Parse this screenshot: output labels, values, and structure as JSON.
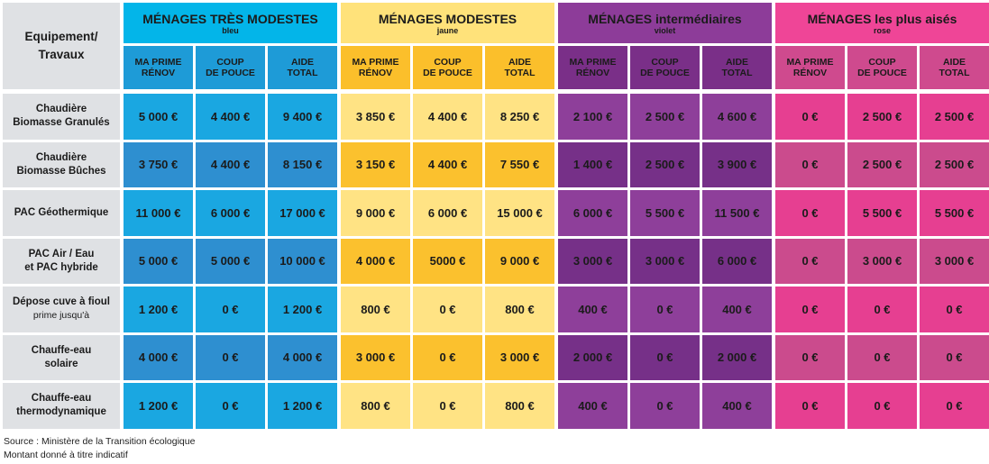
{
  "corner_label": "Equipement/\nTravaux",
  "groups": [
    {
      "title": "MÉNAGES TRÈS MODESTES",
      "subtitle": "bleu",
      "colors": {
        "header": "#03b5e9",
        "sub": "#1e9bd7",
        "row": "#1aa7e1",
        "row_alt": "#2e8fd0",
        "text": "#1b1b1b"
      }
    },
    {
      "title": "MÉNAGES MODESTES",
      "subtitle": "jaune",
      "colors": {
        "header": "#ffe27a",
        "sub": "#fbbf2b",
        "row": "#ffe384",
        "row_alt": "#fbc12e",
        "text": "#1b1b1b"
      }
    },
    {
      "title": "MÉNAGES intermédiaires",
      "subtitle": "violet",
      "colors": {
        "header": "#8d3c99",
        "sub": "#7a2f88",
        "row": "#8e3f9a",
        "row_alt": "#763088",
        "text": "#1b1b1b"
      }
    },
    {
      "title": "MÉNAGES les plus aisés",
      "subtitle": "rose",
      "colors": {
        "header": "#ef4597",
        "sub": "#cf4a8e",
        "row": "#e63f91",
        "row_alt": "#cb4b8d",
        "text": "#1b1b1b"
      }
    }
  ],
  "sub_headers": [
    "MA PRIME\nRÉNOV",
    "COUP\nDE POUCE",
    "AIDE\nTOTAL"
  ],
  "rows": [
    {
      "label": "Chaudière\nBiomasse Granulés",
      "values": [
        "5 000 €",
        "4 400 €",
        "9 400 €",
        "3 850 €",
        "4 400 €",
        "8 250 €",
        "2 100 €",
        "2 500 €",
        "4 600 €",
        "0 €",
        "2  500 €",
        "2 500 €"
      ]
    },
    {
      "label": "Chaudière\nBiomasse Bûches",
      "values": [
        "3 750 €",
        "4 400 €",
        "8 150 €",
        "3 150 €",
        "4 400 €",
        "7 550 €",
        "1 400 €",
        "2 500 €",
        "3 900 €",
        "0 €",
        "2  500 €",
        "2 500 €"
      ]
    },
    {
      "label": "PAC Géothermique",
      "values": [
        "11 000 €",
        "6 000 €",
        "17 000 €",
        "9 000 €",
        "6 000 €",
        "15 000 €",
        "6 000 €",
        "5 500 €",
        "11 500 €",
        "0 €",
        "5 500 €",
        "5 500 €"
      ]
    },
    {
      "label": "PAC Air / Eau\net PAC hybride",
      "values": [
        "5 000 €",
        "5 000 €",
        "10 000 €",
        "4 000 €",
        "5000 €",
        "9 000 €",
        "3 000 €",
        "3 000 €",
        "6 000 €",
        "0 €",
        "3 000 €",
        "3 000 €"
      ]
    },
    {
      "label": "Dépose cuve à fioul",
      "label_sub": "prime jusqu'à",
      "values": [
        "1 200 €",
        "0 €",
        "1 200 €",
        "800 €",
        "0 €",
        "800 €",
        "400 €",
        "0 €",
        "400 €",
        "0 €",
        "0 €",
        "0 €"
      ]
    },
    {
      "label": "Chauffe-eau\nsolaire",
      "values": [
        "4 000 €",
        "0 €",
        "4 000 €",
        "3 000 €",
        "0 €",
        "3 000 €",
        "2 000 €",
        "0 €",
        "2 000 €",
        "0 €",
        "0 €",
        "0 €"
      ]
    },
    {
      "label": "Chauffe-eau\nthermodynamique",
      "values": [
        "1 200 €",
        "0 €",
        "1 200 €",
        "800 €",
        "0 €",
        "800 €",
        "400 €",
        "0 €",
        "400 €",
        "0 €",
        "0 €",
        "0 €"
      ]
    }
  ],
  "source_lines": [
    "Source : Ministère de la Transition écologique",
    "Montant donné à titre indicatif"
  ],
  "chart_data": {
    "type": "table",
    "columns": [
      "MA PRIME RÉNOV",
      "COUP DE POUCE",
      "AIDE TOTAL"
    ],
    "groups": [
      "MÉNAGES TRÈS MODESTES",
      "MÉNAGES MODESTES",
      "MÉNAGES intermédiaires",
      "MÉNAGES les plus aisés"
    ]
  }
}
